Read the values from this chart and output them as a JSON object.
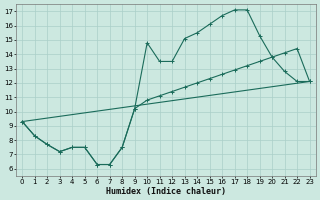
{
  "xlabel": "Humidex (Indice chaleur)",
  "bg_color": "#cce8e0",
  "line_color": "#1a6b5a",
  "grid_color": "#aacfc8",
  "xlim": [
    -0.5,
    23.5
  ],
  "ylim": [
    5.5,
    17.5
  ],
  "xticks": [
    0,
    1,
    2,
    3,
    4,
    5,
    6,
    7,
    8,
    9,
    10,
    11,
    12,
    13,
    14,
    15,
    16,
    17,
    18,
    19,
    20,
    21,
    22,
    23
  ],
  "yticks": [
    6,
    7,
    8,
    9,
    10,
    11,
    12,
    13,
    14,
    15,
    16,
    17
  ],
  "line1_x": [
    0,
    1,
    2,
    3,
    4,
    5,
    6,
    7,
    8,
    9,
    10,
    11,
    12,
    13,
    14,
    15,
    16,
    17,
    18,
    19,
    20,
    21,
    22,
    23
  ],
  "line1_y": [
    9.3,
    8.3,
    7.7,
    7.2,
    7.5,
    7.5,
    6.3,
    6.3,
    7.5,
    10.2,
    14.8,
    13.5,
    13.5,
    15.1,
    15.5,
    16.1,
    16.7,
    17.1,
    17.1,
    15.3,
    13.8,
    12.8,
    12.1,
    12.1
  ],
  "line2_x": [
    0,
    1,
    2,
    3,
    4,
    5,
    6,
    7,
    8,
    9,
    10,
    11,
    12,
    13,
    14,
    15,
    16,
    17,
    18,
    19,
    20,
    21,
    22,
    23
  ],
  "line2_y": [
    9.3,
    8.3,
    7.7,
    7.2,
    7.5,
    7.5,
    6.3,
    6.3,
    7.5,
    10.2,
    10.8,
    11.1,
    11.4,
    11.7,
    12.0,
    12.3,
    12.6,
    12.9,
    13.2,
    13.5,
    13.8,
    14.1,
    14.4,
    12.1
  ],
  "line3_x": [
    0,
    23
  ],
  "line3_y": [
    9.3,
    12.1
  ]
}
